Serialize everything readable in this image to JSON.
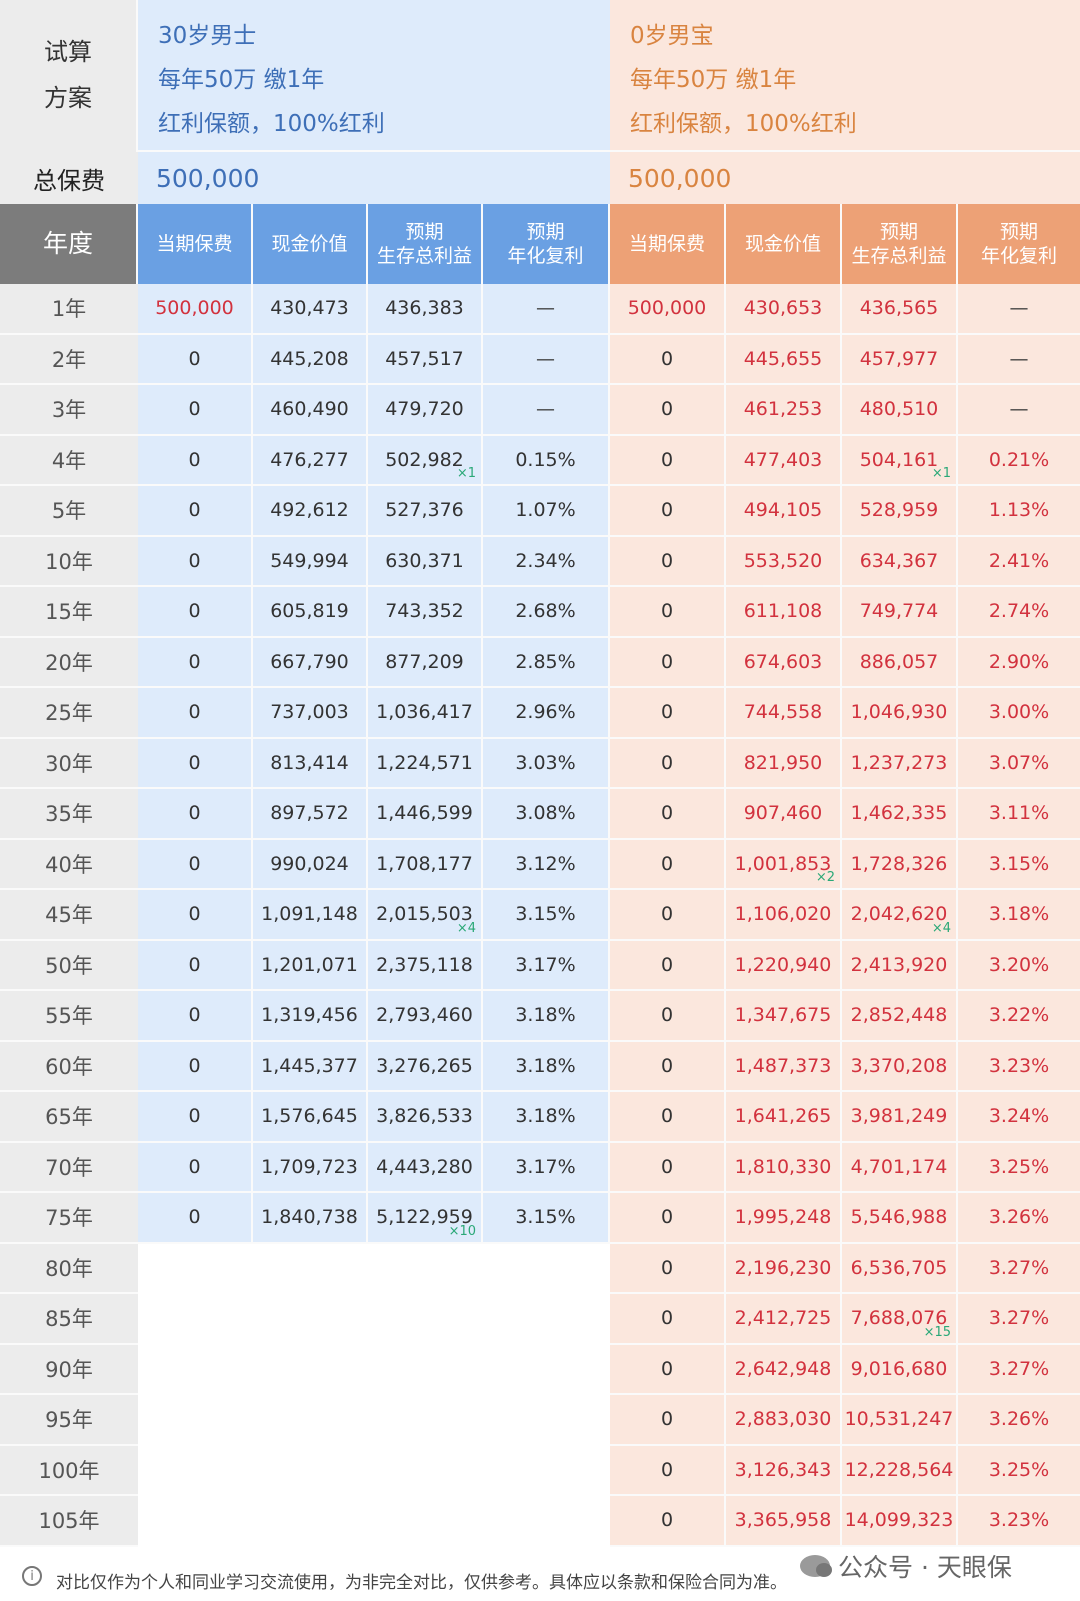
{
  "plan": {
    "label_line1": "试算",
    "label_line2": "方案",
    "left": {
      "line1": "30岁男士",
      "line2": "每年50万 缴1年",
      "line3": "红利保额，100%红利"
    },
    "right": {
      "line1": "0岁男宝",
      "line2": "每年50万 缴1年",
      "line3": "红利保额，100%红利"
    }
  },
  "total": {
    "label": "总保费",
    "left": "500,000",
    "right": "500,000"
  },
  "headers": {
    "year": "年度",
    "premium": "当期保费",
    "cash": "现金价值",
    "survival_line1": "预期",
    "survival_line2": "生存总利益",
    "irr_line1": "预期",
    "irr_line2": "年化复利"
  },
  "rows": [
    {
      "year": "1年",
      "l": [
        "500,000",
        "430,473",
        "436,383",
        "—"
      ],
      "lm": "",
      "r": [
        "500,000",
        "430,653",
        "436,565",
        "—"
      ],
      "rcm": "",
      "rsm": ""
    },
    {
      "year": "2年",
      "l": [
        "0",
        "445,208",
        "457,517",
        "—"
      ],
      "lm": "",
      "r": [
        "0",
        "445,655",
        "457,977",
        "—"
      ],
      "rcm": "",
      "rsm": ""
    },
    {
      "year": "3年",
      "l": [
        "0",
        "460,490",
        "479,720",
        "—"
      ],
      "lm": "",
      "r": [
        "0",
        "461,253",
        "480,510",
        "—"
      ],
      "rcm": "",
      "rsm": ""
    },
    {
      "year": "4年",
      "l": [
        "0",
        "476,277",
        "502,982",
        "0.15%"
      ],
      "lm": "×1",
      "r": [
        "0",
        "477,403",
        "504,161",
        "0.21%"
      ],
      "rcm": "",
      "rsm": "×1"
    },
    {
      "year": "5年",
      "l": [
        "0",
        "492,612",
        "527,376",
        "1.07%"
      ],
      "lm": "",
      "r": [
        "0",
        "494,105",
        "528,959",
        "1.13%"
      ],
      "rcm": "",
      "rsm": ""
    },
    {
      "year": "10年",
      "l": [
        "0",
        "549,994",
        "630,371",
        "2.34%"
      ],
      "lm": "",
      "r": [
        "0",
        "553,520",
        "634,367",
        "2.41%"
      ],
      "rcm": "",
      "rsm": ""
    },
    {
      "year": "15年",
      "l": [
        "0",
        "605,819",
        "743,352",
        "2.68%"
      ],
      "lm": "",
      "r": [
        "0",
        "611,108",
        "749,774",
        "2.74%"
      ],
      "rcm": "",
      "rsm": ""
    },
    {
      "year": "20年",
      "l": [
        "0",
        "667,790",
        "877,209",
        "2.85%"
      ],
      "lm": "",
      "r": [
        "0",
        "674,603",
        "886,057",
        "2.90%"
      ],
      "rcm": "",
      "rsm": ""
    },
    {
      "year": "25年",
      "l": [
        "0",
        "737,003",
        "1,036,417",
        "2.96%"
      ],
      "lm": "",
      "r": [
        "0",
        "744,558",
        "1,046,930",
        "3.00%"
      ],
      "rcm": "",
      "rsm": ""
    },
    {
      "year": "30年",
      "l": [
        "0",
        "813,414",
        "1,224,571",
        "3.03%"
      ],
      "lm": "",
      "r": [
        "0",
        "821,950",
        "1,237,273",
        "3.07%"
      ],
      "rcm": "",
      "rsm": ""
    },
    {
      "year": "35年",
      "l": [
        "0",
        "897,572",
        "1,446,599",
        "3.08%"
      ],
      "lm": "",
      "r": [
        "0",
        "907,460",
        "1,462,335",
        "3.11%"
      ],
      "rcm": "",
      "rsm": ""
    },
    {
      "year": "40年",
      "l": [
        "0",
        "990,024",
        "1,708,177",
        "3.12%"
      ],
      "lm": "",
      "r": [
        "0",
        "1,001,853",
        "1,728,326",
        "3.15%"
      ],
      "rcm": "×2",
      "rsm": ""
    },
    {
      "year": "45年",
      "l": [
        "0",
        "1,091,148",
        "2,015,503",
        "3.15%"
      ],
      "lm": "×4",
      "r": [
        "0",
        "1,106,020",
        "2,042,620",
        "3.18%"
      ],
      "rcm": "",
      "rsm": "×4"
    },
    {
      "year": "50年",
      "l": [
        "0",
        "1,201,071",
        "2,375,118",
        "3.17%"
      ],
      "lm": "",
      "r": [
        "0",
        "1,220,940",
        "2,413,920",
        "3.20%"
      ],
      "rcm": "",
      "rsm": ""
    },
    {
      "year": "55年",
      "l": [
        "0",
        "1,319,456",
        "2,793,460",
        "3.18%"
      ],
      "lm": "",
      "r": [
        "0",
        "1,347,675",
        "2,852,448",
        "3.22%"
      ],
      "rcm": "",
      "rsm": ""
    },
    {
      "year": "60年",
      "l": [
        "0",
        "1,445,377",
        "3,276,265",
        "3.18%"
      ],
      "lm": "",
      "r": [
        "0",
        "1,487,373",
        "3,370,208",
        "3.23%"
      ],
      "rcm": "",
      "rsm": ""
    },
    {
      "year": "65年",
      "l": [
        "0",
        "1,576,645",
        "3,826,533",
        "3.18%"
      ],
      "lm": "",
      "r": [
        "0",
        "1,641,265",
        "3,981,249",
        "3.24%"
      ],
      "rcm": "",
      "rsm": ""
    },
    {
      "year": "70年",
      "l": [
        "0",
        "1,709,723",
        "4,443,280",
        "3.17%"
      ],
      "lm": "",
      "r": [
        "0",
        "1,810,330",
        "4,701,174",
        "3.25%"
      ],
      "rcm": "",
      "rsm": ""
    },
    {
      "year": "75年",
      "l": [
        "0",
        "1,840,738",
        "5,122,959",
        "3.15%"
      ],
      "lm": "×10",
      "r": [
        "0",
        "1,995,248",
        "5,546,988",
        "3.26%"
      ],
      "rcm": "",
      "rsm": ""
    },
    {
      "year": "80年",
      "l": null,
      "lm": "",
      "r": [
        "0",
        "2,196,230",
        "6,536,705",
        "3.27%"
      ],
      "rcm": "",
      "rsm": ""
    },
    {
      "year": "85年",
      "l": null,
      "lm": "",
      "r": [
        "0",
        "2,412,725",
        "7,688,076",
        "3.27%"
      ],
      "rcm": "",
      "rsm": "×15"
    },
    {
      "year": "90年",
      "l": null,
      "lm": "",
      "r": [
        "0",
        "2,642,948",
        "9,016,680",
        "3.27%"
      ],
      "rcm": "",
      "rsm": ""
    },
    {
      "year": "95年",
      "l": null,
      "lm": "",
      "r": [
        "0",
        "2,883,030",
        "10,531,247",
        "3.26%"
      ],
      "rcm": "",
      "rsm": ""
    },
    {
      "year": "100年",
      "l": null,
      "lm": "",
      "r": [
        "0",
        "3,126,343",
        "12,228,564",
        "3.25%"
      ],
      "rcm": "",
      "rsm": ""
    },
    {
      "year": "105年",
      "l": null,
      "lm": "",
      "r": [
        "0",
        "3,365,958",
        "14,099,323",
        "3.23%"
      ],
      "rcm": "",
      "rsm": ""
    }
  ],
  "footer": {
    "info_icon": "i",
    "note": "对比仅作为个人和同业学习交流使用，为非完全对比，仅供参考。具体应以条款和保险合同为准。",
    "watermark": "公众号 · 天眼保"
  },
  "colors": {
    "blue_header": "#6aa0e3",
    "orange_header": "#eda176",
    "blue_bg": "#deebfb",
    "orange_bg": "#fbe7dd",
    "red_text": "#d2323e",
    "multiplier_green": "#2aa877"
  }
}
